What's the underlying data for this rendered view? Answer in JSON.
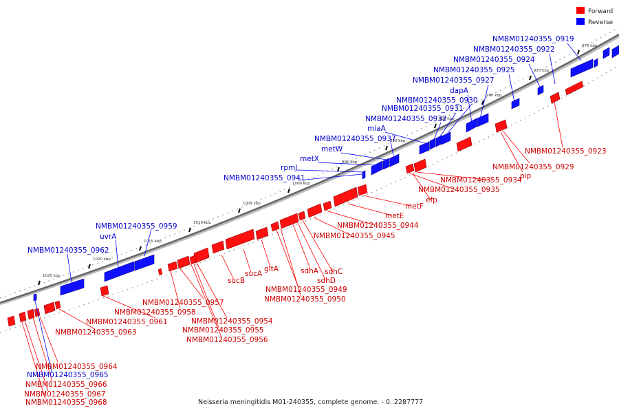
{
  "legend": {
    "forward_label": "Forward",
    "reverse_label": "Reverse",
    "forward_color": "#ff0000",
    "reverse_color": "#0000ff"
  },
  "caption": "Neisseria meningitidis M01-240355, complete genome. - 0..2287777",
  "scale_labels": [
    "970 kbp",
    "975 kbp",
    "980 kbp",
    "985 kbp",
    "990 kbp",
    "995 kbp",
    "1000 kbp",
    "1005 kbp",
    "1010 kbp",
    "1015 kbp",
    "1020 kbp",
    "1025 kbp"
  ],
  "reverse_genes": [
    {
      "label": "NMBM01240355_0919"
    },
    {
      "label": "NMBM01240355_0922"
    },
    {
      "label": "NMBM01240355_0924"
    },
    {
      "label": "NMBM01240355_0925"
    },
    {
      "label": "NMBM01240355_0927"
    },
    {
      "label": "dapA"
    },
    {
      "label": "NMBM01240355_0930"
    },
    {
      "label": "NMBM01240355_0931"
    },
    {
      "label": "NMBM01240355_0932"
    },
    {
      "label": "miaA"
    },
    {
      "label": "NMBM01240355_0937"
    },
    {
      "label": "metW"
    },
    {
      "label": "metX"
    },
    {
      "label": "rpmJ"
    },
    {
      "label": "NMBM01240355_0941"
    },
    {
      "label": "NMBM01240355_0959"
    },
    {
      "label": "uvrA"
    },
    {
      "label": "NMBM01240355_0962"
    },
    {
      "label": "NMBM01240355_0965"
    }
  ],
  "forward_genes": [
    {
      "label": "NMBM01240355_0923"
    },
    {
      "label": "NMBM01240355_0929"
    },
    {
      "label": "pip"
    },
    {
      "label": "NMBM01240355_0934"
    },
    {
      "label": "NMBM01240355_0935"
    },
    {
      "label": "efp"
    },
    {
      "label": "metF"
    },
    {
      "label": "metE"
    },
    {
      "label": "NMBM01240355_0944"
    },
    {
      "label": "NMBM01240355_0945"
    },
    {
      "label": "sdhC"
    },
    {
      "label": "sdhA"
    },
    {
      "label": "sdhD"
    },
    {
      "label": "gltA"
    },
    {
      "label": "sucA"
    },
    {
      "label": "sucB"
    },
    {
      "label": "NMBM01240355_0949"
    },
    {
      "label": "NMBM01240355_0950"
    },
    {
      "label": "NMBM01240355_0954"
    },
    {
      "label": "NMBM01240355_0955"
    },
    {
      "label": "NMBM01240355_0956"
    },
    {
      "label": "NMBM01240355_0957"
    },
    {
      "label": "NMBM01240355_0958"
    },
    {
      "label": "NMBM01240355_0961"
    },
    {
      "label": "NMBM01240355_0963"
    },
    {
      "label": "NMBM01240355_0964"
    },
    {
      "label": "NMBM01240355_0966"
    },
    {
      "label": "NMBM01240355_0967"
    },
    {
      "label": "NMBM01240355_0968"
    }
  ]
}
